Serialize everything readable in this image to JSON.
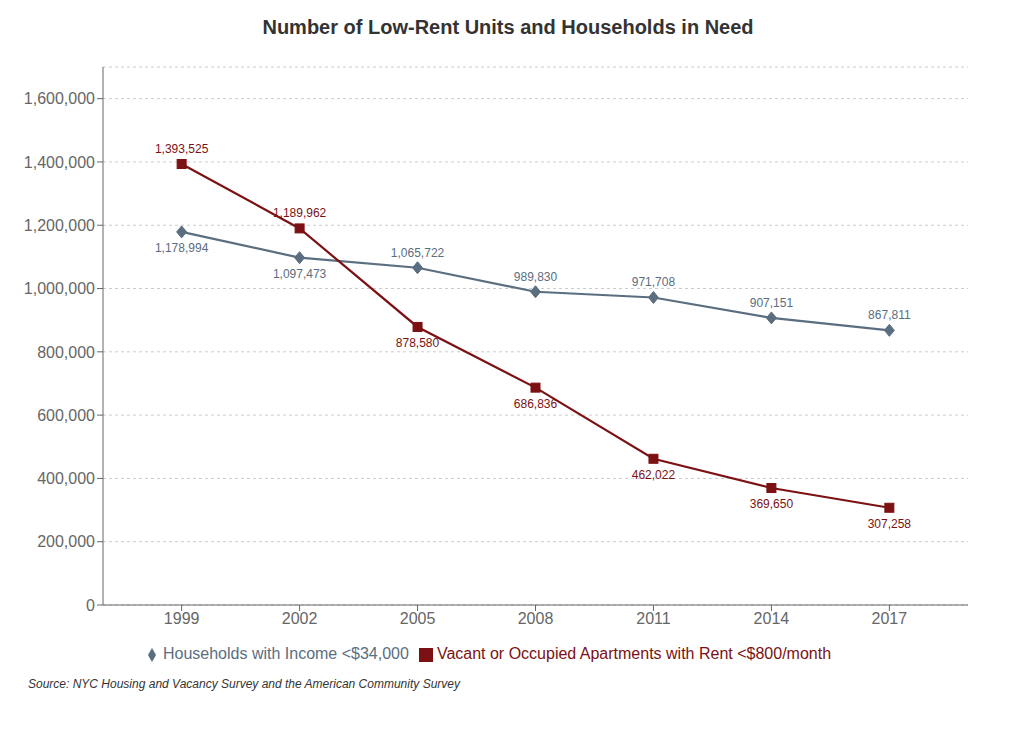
{
  "chart_data": {
    "type": "line",
    "title": "Number of Low-Rent Units and Households in Need",
    "x": [
      1999,
      2002,
      2005,
      2008,
      2011,
      2014,
      2017
    ],
    "xlim": [
      1997,
      2019
    ],
    "xticks": [
      1999,
      2002,
      2005,
      2008,
      2011,
      2014,
      2017
    ],
    "ylim": [
      0,
      1700000
    ],
    "yticks": [
      0,
      {
        "value": 200000,
        "label": "200,000"
      },
      {
        "value": 400000,
        "label": "400,000"
      },
      {
        "value": 600000,
        "label": "600,000"
      },
      {
        "value": 800000,
        "label": "800,000"
      },
      {
        "value": 1000000,
        "label": "1,000,000"
      },
      {
        "value": 1200000,
        "label": "1,200,000"
      },
      {
        "value": 1400000,
        "label": "1,400,000"
      },
      {
        "value": 1600000,
        "label": "1,600,000"
      }
    ],
    "grid": true,
    "legend": "bottom",
    "data_labels": true,
    "series": [
      {
        "name": "Households with Income <$34,000",
        "color": "#5a6e80",
        "marker": "diamond",
        "values": [
          1178994,
          1097473,
          1065722,
          989830,
          971708,
          907151,
          867811
        ],
        "value_labels": [
          "1,178,994",
          "1,097,473",
          "1,065,722",
          "989,830",
          "971,708",
          "907,151",
          "867,811"
        ]
      },
      {
        "name": "Vacant or Occupied Apartments with Rent <$800/month",
        "color": "#7b1113",
        "marker": "square",
        "values": [
          1393525,
          1189962,
          878580,
          686836,
          462022,
          369650,
          307258
        ],
        "value_labels": [
          "1,393,525",
          "1,189,962",
          "878,580",
          "686,836",
          "462,022",
          "369,650",
          "307,258"
        ]
      }
    ],
    "annotations": [
      "Source: NYC Housing and Vacancy Survey and the American Community Survey"
    ]
  }
}
